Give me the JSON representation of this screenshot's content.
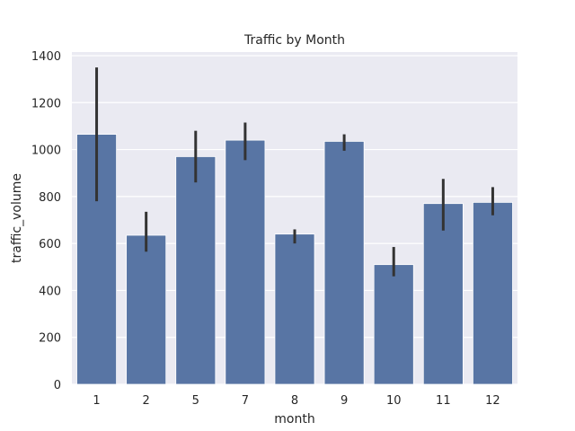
{
  "chart_data": {
    "type": "bar",
    "title": "Traffic by Month",
    "xlabel": "month",
    "ylabel": "traffic_volume",
    "categories": [
      "1",
      "2",
      "5",
      "7",
      "8",
      "9",
      "10",
      "11",
      "12"
    ],
    "values": [
      1065,
      635,
      970,
      1040,
      640,
      1035,
      510,
      770,
      775
    ],
    "error_low": [
      780,
      565,
      860,
      955,
      600,
      995,
      460,
      655,
      720
    ],
    "error_high": [
      1350,
      735,
      1080,
      1115,
      660,
      1065,
      585,
      875,
      840
    ],
    "ylim": [
      0,
      1400
    ],
    "yticks": [
      0,
      200,
      400,
      600,
      800,
      1000,
      1200,
      1400
    ],
    "grid": true,
    "colors": {
      "bar": "#5875a4",
      "error": "#333333",
      "background": "#eaeaf2",
      "grid": "#ffffff"
    }
  }
}
